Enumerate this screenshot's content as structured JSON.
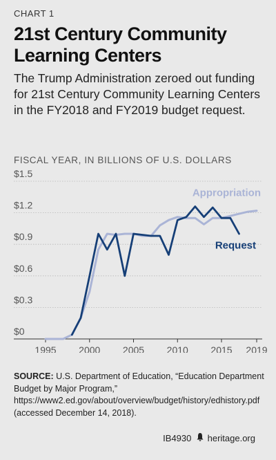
{
  "eyebrow": "CHART 1",
  "title": "21st Century Community Learning Centers",
  "subtitle": "The Trump Administration zeroed out funding for 21st Century Community Learning Centers in the FY2018 and FY2019 budget request.",
  "unit_label": "FISCAL YEAR, IN BILLIONS OF U.S. DOLLARS",
  "source_label": "SOURCE:",
  "source_text": "U.S. Department of Education, “Education Department Budget by Major Program,” https://www2.ed.gov/about/overview/budget/history/edhistory.pdf (accessed December 14, 2018).",
  "footer_id": "IB4930",
  "footer_site": "heritage.org",
  "footer_icon": "bell-icon",
  "colors": {
    "appropriation": "#aab4d6",
    "request": "#163f77"
  },
  "chart_data": {
    "type": "line",
    "xlim": [
      1995,
      2019
    ],
    "ylim": [
      0,
      1.5
    ],
    "x_ticks": [
      1995,
      2000,
      2005,
      2010,
      2015,
      2019
    ],
    "y_ticks": [
      {
        "value": 0,
        "label": "$0"
      },
      {
        "value": 0.3,
        "label": "$0.3"
      },
      {
        "value": 0.6,
        "label": "$0.6"
      },
      {
        "value": 0.9,
        "label": "$0.9"
      },
      {
        "value": 1.2,
        "label": "$1.2"
      },
      {
        "value": 1.5,
        "label": "$1.5"
      }
    ],
    "grid": "horizontal",
    "series": [
      {
        "name": "Appropriation",
        "color": "#aab4d6",
        "x": [
          1995,
          1996,
          1997,
          1998,
          1999,
          2000,
          2001,
          2002,
          2003,
          2004,
          2005,
          2006,
          2007,
          2008,
          2009,
          2010,
          2011,
          2012,
          2013,
          2014,
          2015,
          2016,
          2017,
          2018,
          2019
        ],
        "values": [
          0,
          0,
          0,
          0.04,
          0.2,
          0.45,
          0.85,
          1.0,
          0.99,
          1.0,
          1.0,
          0.98,
          0.98,
          1.08,
          1.13,
          1.16,
          1.15,
          1.15,
          1.09,
          1.15,
          1.15,
          1.17,
          1.19,
          1.21,
          1.22
        ]
      },
      {
        "name": "Request",
        "color": "#163f77",
        "x": [
          1998,
          1999,
          2000,
          2001,
          2002,
          2003,
          2004,
          2005,
          2006,
          2007,
          2008,
          2009,
          2010,
          2011,
          2012,
          2013,
          2014,
          2015,
          2016,
          2017
        ],
        "values": [
          0.04,
          0.2,
          0.6,
          1.0,
          0.85,
          1.0,
          0.6,
          1.0,
          0.99,
          0.98,
          0.98,
          0.8,
          1.13,
          1.16,
          1.26,
          1.16,
          1.25,
          1.15,
          1.15,
          1.0
        ]
      }
    ]
  }
}
